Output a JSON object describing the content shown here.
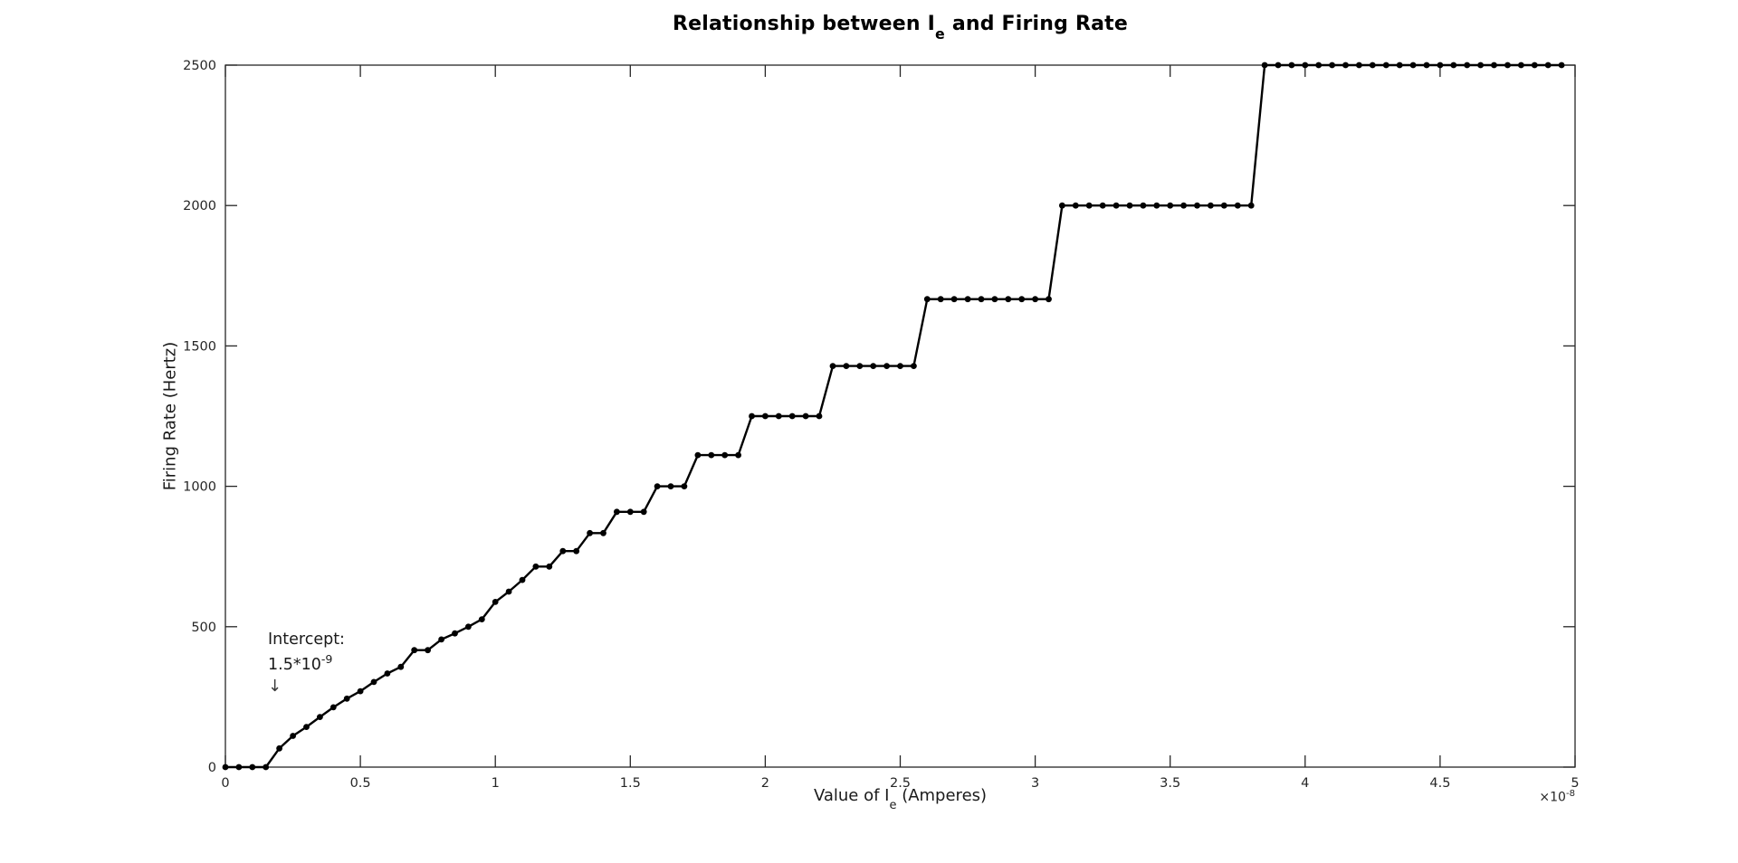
{
  "title": {
    "prefix": "Relationship between I",
    "sub": "e",
    "suffix": " and Firing Rate"
  },
  "axes": {
    "xlabel": {
      "prefix": "Value of I",
      "sub": "e",
      "suffix": " (Amperes)"
    },
    "ylabel": "Firing Rate (Hertz)",
    "x_offset_text": {
      "base": "×10",
      "exp": "-8"
    }
  },
  "annotation": {
    "line1": "Intercept:",
    "value_base": "1.5*10",
    "value_exp": "-9",
    "arrow": "↓"
  },
  "colors": {
    "line": "#000000",
    "marker": "#000000",
    "frame": "#262626",
    "tick_label": "#262626",
    "title_text": "#000000",
    "annotation_text": "#1a1a1a"
  },
  "chart_data": {
    "type": "line",
    "title": "Relationship between I_e and Firing Rate",
    "xlabel": "Value of I_e (Amperes)",
    "ylabel": "Firing Rate (Hertz)",
    "x_unit_scale": "1e-8",
    "x_start": 0,
    "x_step": 0.05,
    "n_points": 100,
    "xlim": [
      0,
      5
    ],
    "ylim": [
      0,
      2500
    ],
    "xticks": [
      0,
      0.5,
      1,
      1.5,
      2,
      2.5,
      3,
      3.5,
      4,
      4.5,
      5
    ],
    "xtick_labels": [
      "0",
      "0.5",
      "1",
      "1.5",
      "2",
      "2.5",
      "3",
      "3.5",
      "4",
      "4.5",
      "5"
    ],
    "yticks": [
      0,
      500,
      1000,
      1500,
      2000,
      2500
    ],
    "ytick_labels": [
      "0",
      "500",
      "1000",
      "1500",
      "2000",
      "2500"
    ],
    "grid": false,
    "legend": "none",
    "marker": "filled-circle",
    "annotation": {
      "text": "Intercept: 1.5*10^-9",
      "points_to_x": 0.15
    },
    "y": [
      0,
      0,
      0,
      0,
      66.7,
      111.1,
      142.9,
      178.6,
      212.8,
      243.9,
      270.3,
      303.0,
      333.3,
      357.1,
      416.7,
      416.7,
      454.5,
      476.2,
      500.0,
      526.3,
      588.2,
      625.0,
      666.7,
      714.3,
      714.3,
      769.2,
      769.2,
      833.3,
      833.3,
      909.1,
      909.1,
      909.1,
      1000,
      1000,
      1000,
      1111.1,
      1111.1,
      1111.1,
      1111.1,
      1250,
      1250,
      1250,
      1250,
      1250,
      1250,
      1428.6,
      1428.6,
      1428.6,
      1428.6,
      1428.6,
      1428.6,
      1428.6,
      1666.7,
      1666.7,
      1666.7,
      1666.7,
      1666.7,
      1666.7,
      1666.7,
      1666.7,
      1666.7,
      1666.7,
      2000,
      2000,
      2000,
      2000,
      2000,
      2000,
      2000,
      2000,
      2000,
      2000,
      2000,
      2000,
      2000,
      2000,
      2000,
      2500,
      2500,
      2500,
      2500,
      2500,
      2500,
      2500,
      2500,
      2500,
      2500,
      2500,
      2500,
      2500,
      2500,
      2500,
      2500,
      2500,
      2500,
      2500,
      2500,
      2500,
      2500,
      2500
    ]
  }
}
